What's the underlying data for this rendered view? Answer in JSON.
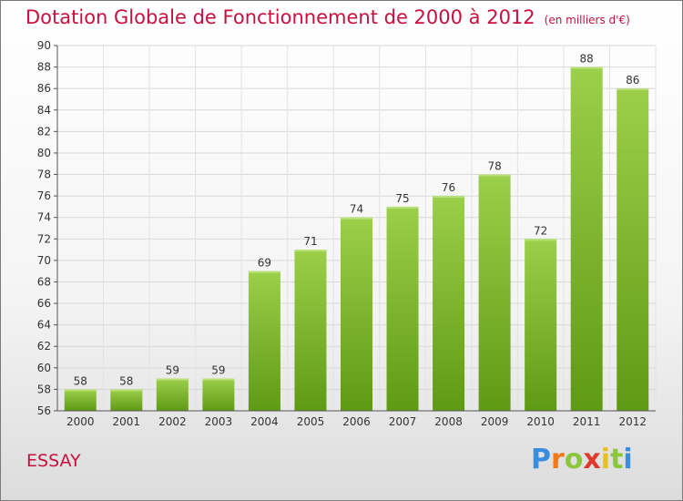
{
  "chart_data": {
    "type": "bar",
    "title": "Dotation Globale de Fonctionnement de 2000 à 2012",
    "subtitle": "(en milliers d'€)",
    "categories": [
      "2000",
      "2001",
      "2002",
      "2003",
      "2004",
      "2005",
      "2006",
      "2007",
      "2008",
      "2009",
      "2010",
      "2011",
      "2012"
    ],
    "values": [
      58,
      58,
      59,
      59,
      69,
      71,
      74,
      75,
      76,
      78,
      72,
      88,
      86
    ],
    "ylim": [
      56,
      90
    ],
    "yticks": [
      56,
      58,
      60,
      62,
      64,
      66,
      68,
      70,
      72,
      74,
      76,
      78,
      80,
      82,
      84,
      86,
      88,
      90
    ],
    "grid": true,
    "bar_color": "#7cb82f"
  },
  "commune": "ESSAY",
  "logo": {
    "text": "Proxiti"
  }
}
